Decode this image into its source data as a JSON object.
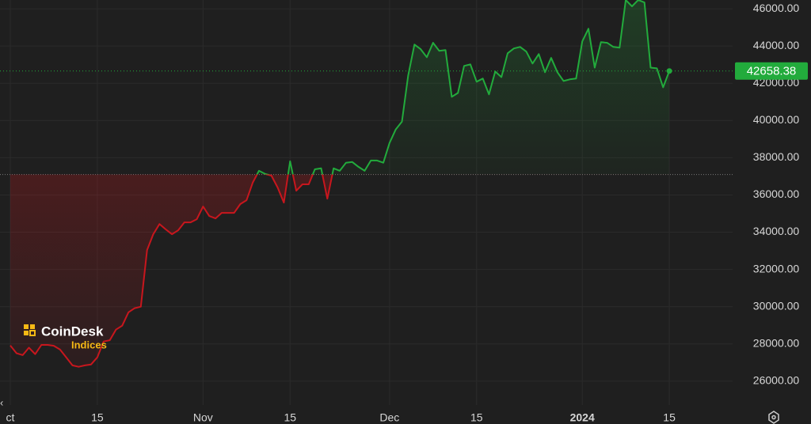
{
  "chart_data": {
    "type": "line",
    "categories": [
      "ct",
      null,
      null,
      null,
      null,
      null,
      null,
      null,
      null,
      null,
      null,
      null,
      null,
      null,
      "15",
      null,
      null,
      null,
      null,
      null,
      null,
      null,
      null,
      null,
      null,
      null,
      null,
      null,
      null,
      null,
      null,
      "Nov",
      null,
      null,
      null,
      null,
      null,
      null,
      null,
      null,
      null,
      null,
      null,
      null,
      null,
      "15",
      null,
      null,
      null,
      null,
      null,
      null,
      null,
      null,
      null,
      null,
      null,
      null,
      null,
      null,
      null,
      "Dec",
      null,
      null,
      null,
      null,
      null,
      null,
      null,
      null,
      null,
      null,
      null,
      null,
      null,
      "15",
      null,
      null,
      null,
      null,
      null,
      null,
      null,
      null,
      null,
      null,
      null,
      null,
      null,
      null,
      null,
      null,
      "2024",
      null,
      null,
      null,
      null,
      null,
      null,
      null,
      null,
      null,
      null,
      null,
      null,
      null,
      "15"
    ],
    "values": [
      27920,
      27500,
      27400,
      27800,
      27450,
      27950,
      27950,
      27900,
      27700,
      27280,
      26850,
      26770,
      26850,
      26900,
      27280,
      28130,
      28200,
      28770,
      28980,
      29700,
      29920,
      30000,
      33040,
      33890,
      34440,
      34150,
      33890,
      34100,
      34530,
      34530,
      34700,
      35380,
      34870,
      34740,
      35040,
      35040,
      35040,
      35510,
      35720,
      36660,
      37300,
      37130,
      37040,
      36400,
      35590,
      37810,
      36230,
      36570,
      36570,
      37380,
      37430,
      35800,
      37430,
      37300,
      37730,
      37770,
      37510,
      37300,
      37850,
      37850,
      37730,
      38790,
      39520,
      39940,
      42420,
      44080,
      43830,
      43400,
      44170,
      43740,
      43780,
      41270,
      41480,
      42930,
      43010,
      42080,
      42250,
      41400,
      42630,
      42330,
      43610,
      43870,
      43950,
      43700,
      43060,
      43570,
      42590,
      43360,
      42590,
      42120,
      42210,
      42250,
      44250,
      44930,
      42840,
      44210,
      44170,
      43950,
      43910,
      46470,
      46130,
      46470,
      46340,
      42840,
      42800,
      41780,
      42658.38
    ],
    "last_label": "42658.38",
    "baseline": 37100,
    "up_color": "#22ab3c",
    "down_color": "#c8161d",
    "ylim": [
      24720,
      46470
    ],
    "yticks": [
      {
        "value": 26000,
        "label": "26000.00"
      },
      {
        "value": 28000,
        "label": "28000.00"
      },
      {
        "value": 30000,
        "label": "30000.00"
      },
      {
        "value": 32000,
        "label": "32000.00"
      },
      {
        "value": 34000,
        "label": "34000.00"
      },
      {
        "value": 36000,
        "label": "36000.00"
      },
      {
        "value": 38000,
        "label": "38000.00"
      },
      {
        "value": 40000,
        "label": "40000.00"
      },
      {
        "value": 42000,
        "label": "42000.00"
      },
      {
        "value": 44000,
        "label": "44000.00"
      },
      {
        "value": 46000,
        "label": "46000.00"
      }
    ],
    "grid": true,
    "logo": {
      "name": "CoinDesk",
      "sub": "Indices"
    }
  }
}
